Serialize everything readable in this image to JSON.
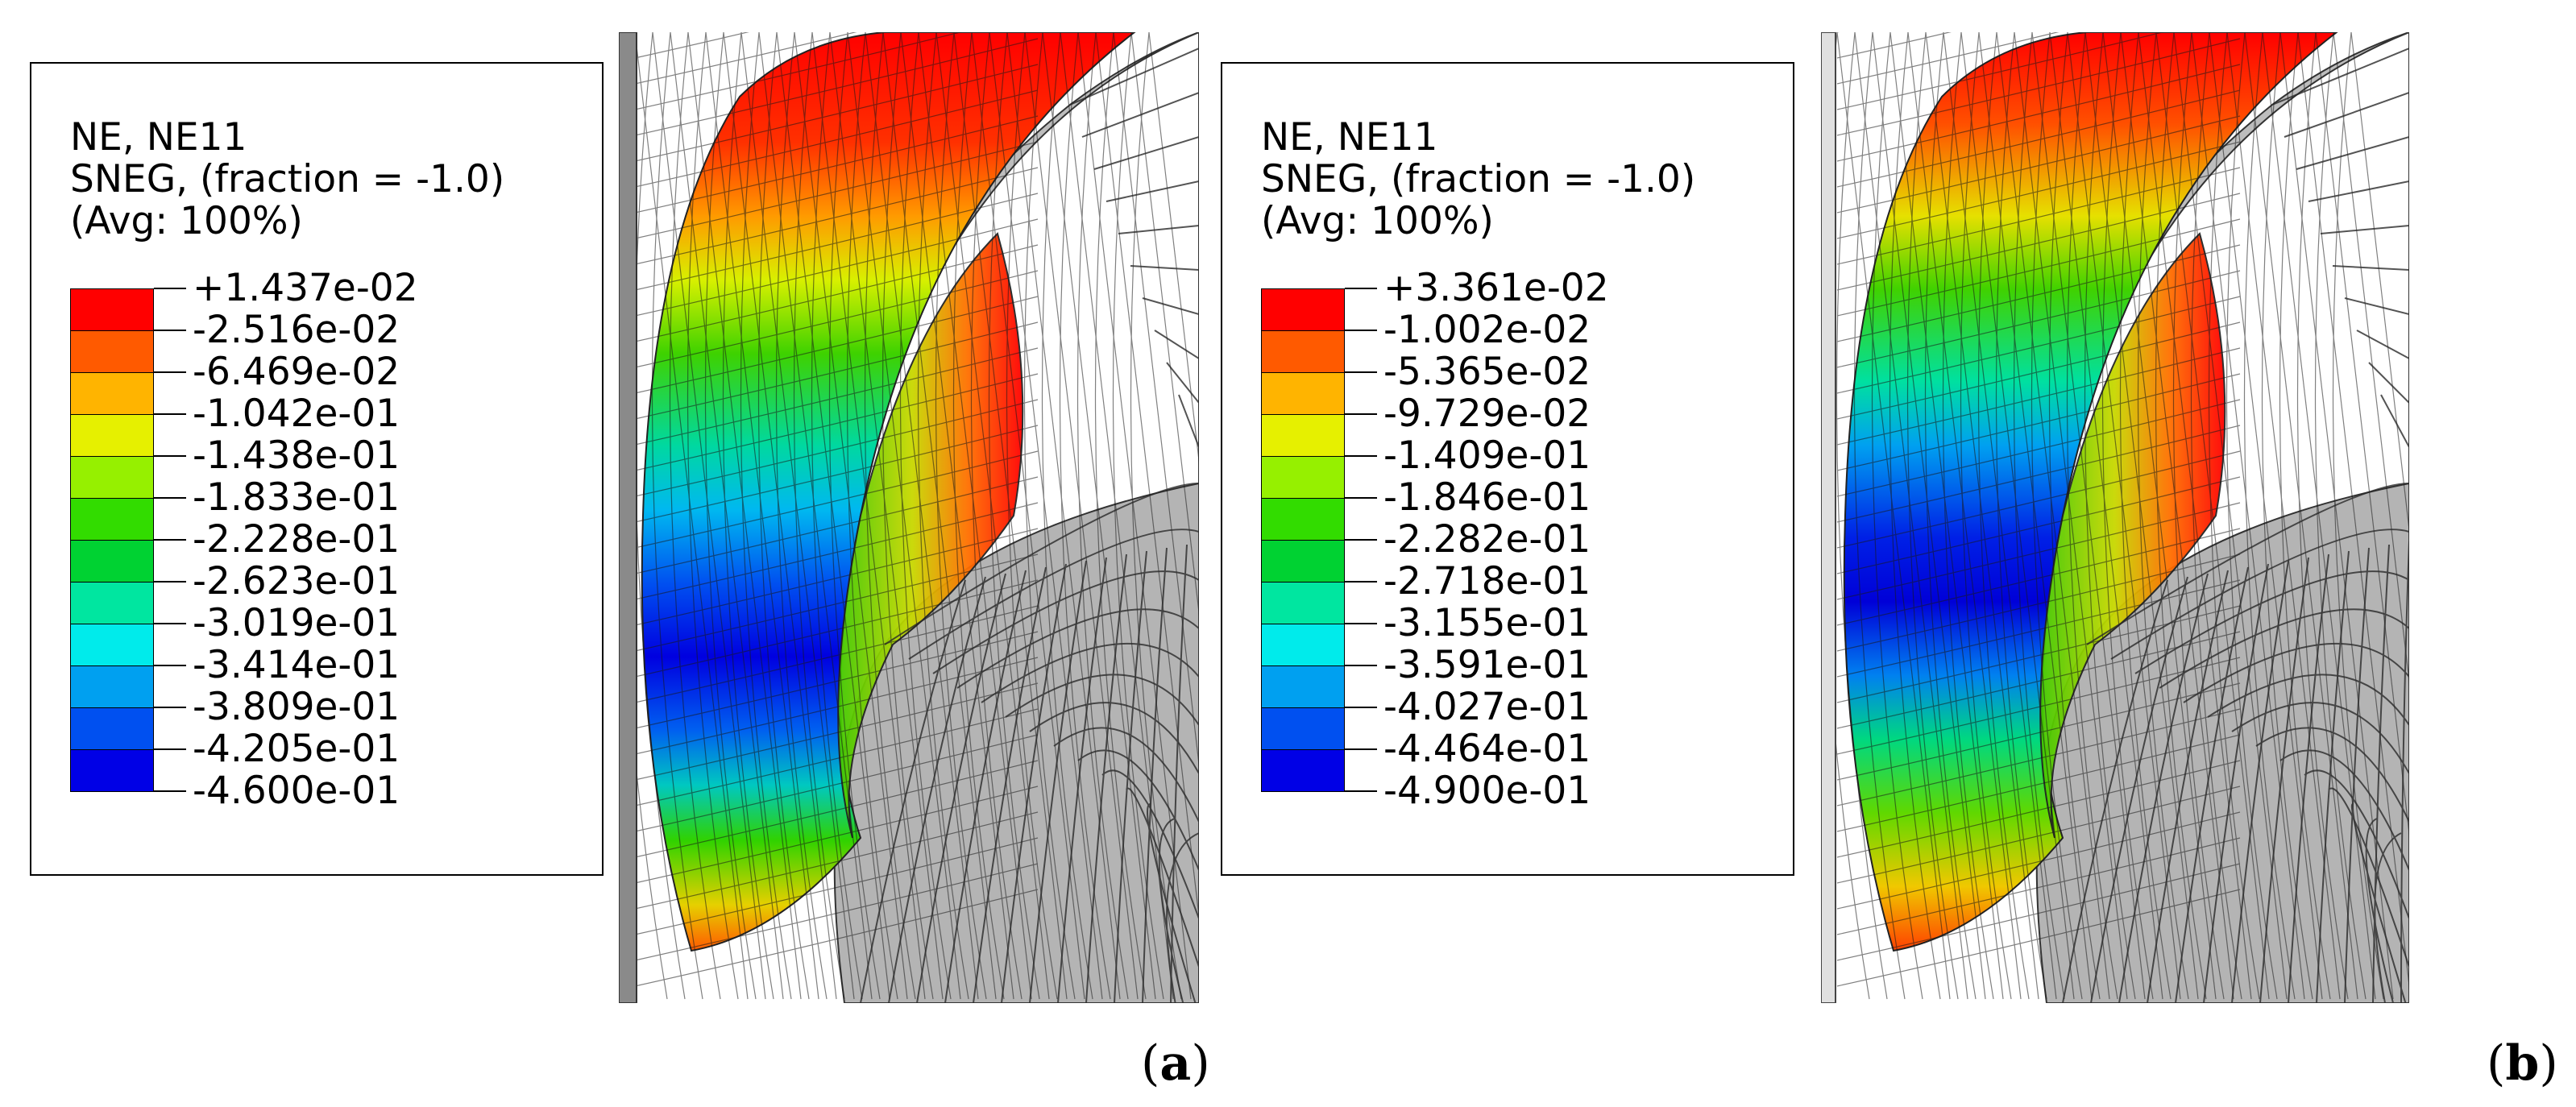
{
  "panels": [
    {
      "id": "a",
      "label_open": "(",
      "label_letter": "a",
      "label_close": ")",
      "legend": {
        "line1": "NE, NE11",
        "line2": "SNEG, (fraction = -1.0)",
        "line3": "(Avg: 100%)",
        "ticks": [
          "+1.437e-02",
          "-2.516e-02",
          "-6.469e-02",
          "-1.042e-01",
          "-1.438e-01",
          "-1.833e-01",
          "-2.228e-01",
          "-2.623e-01",
          "-3.019e-01",
          "-3.414e-01",
          "-3.809e-01",
          "-4.205e-01",
          "-4.600e-01"
        ]
      }
    },
    {
      "id": "b",
      "label_open": "(",
      "label_letter": "b",
      "label_close": ")",
      "legend": {
        "line1": "NE, NE11",
        "line2": "SNEG, (fraction = -1.0)",
        "line3": "(Avg: 100%)",
        "ticks": [
          "+3.361e-02",
          "-1.002e-02",
          "-5.365e-02",
          "-9.729e-02",
          "-1.409e-01",
          "-1.846e-01",
          "-2.282e-01",
          "-2.718e-01",
          "-3.155e-01",
          "-3.591e-01",
          "-4.027e-01",
          "-4.464e-01",
          "-4.900e-01"
        ]
      }
    }
  ],
  "colors": {
    "band_colors": [
      "#ff0000",
      "#ff5a00",
      "#ffb400",
      "#e6f000",
      "#96f000",
      "#32dc00",
      "#00d232",
      "#00e6a0",
      "#00ebeb",
      "#00a0f0",
      "#0050f0",
      "#0000e6"
    ],
    "mesh_gray": "#b4b4b4",
    "plate_gray": "#8a8a8a"
  }
}
